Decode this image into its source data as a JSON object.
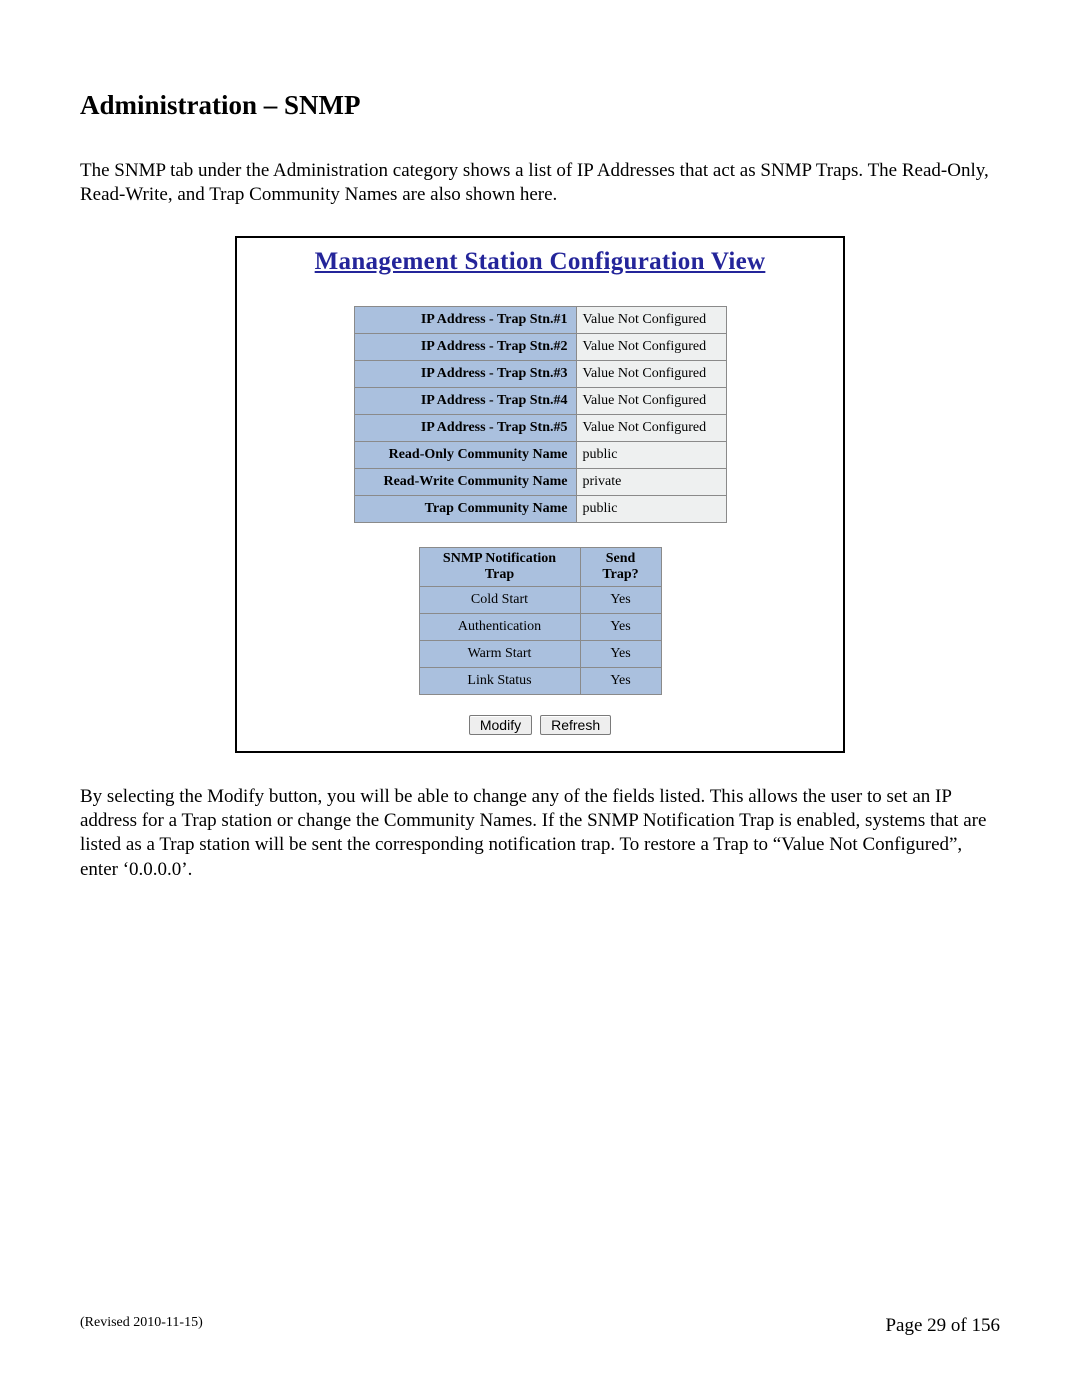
{
  "doc": {
    "heading": "Administration – SNMP",
    "intro": "The SNMP tab under the Administration category shows a list of IP Addresses that act as SNMP Traps.  The Read-Only, Read-Write, and Trap Community Names are also shown here.",
    "outro": "By selecting the Modify button, you will be able to change any of the fields listed.  This allows the user to set an IP address for a Trap station or change the Community Names.  If the SNMP Notification Trap is enabled, systems that are listed as a Trap station will be sent the corresponding notification trap.  To restore a Trap to “Value Not Configured”, enter ‘0.0.0.0’.",
    "revised": "(Revised 2010-11-15)",
    "page_label": "Page 29 of 156"
  },
  "panel": {
    "title": "Management Station Configuration View",
    "rows": [
      {
        "label": "IP Address - Trap Stn.#1",
        "value": "Value Not Configured"
      },
      {
        "label": "IP Address - Trap Stn.#2",
        "value": "Value Not Configured"
      },
      {
        "label": "IP Address - Trap Stn.#3",
        "value": "Value Not Configured"
      },
      {
        "label": "IP Address - Trap Stn.#4",
        "value": "Value Not Configured"
      },
      {
        "label": "IP Address - Trap Stn.#5",
        "value": "Value Not Configured"
      },
      {
        "label": "Read-Only Community Name",
        "value": "public"
      },
      {
        "label": "Read-Write Community Name",
        "value": "private"
      },
      {
        "label": "Trap Community Name",
        "value": "public"
      }
    ],
    "trap_header_name": "SNMP Notification Trap",
    "trap_header_send": "Send Trap?",
    "traps": [
      {
        "name": "Cold Start",
        "send": "Yes"
      },
      {
        "name": "Authentication",
        "send": "Yes"
      },
      {
        "name": "Warm Start",
        "send": "Yes"
      },
      {
        "name": "Link Status",
        "send": "Yes"
      }
    ],
    "buttons": {
      "modify": "Modify",
      "refresh": "Refresh"
    }
  },
  "style": {
    "page_bg": "#ffffff",
    "text_color": "#000000",
    "panel_title_color": "#24259a",
    "cell_header_bg": "#aac0de",
    "cell_value_bg": "#eef0f0",
    "cell_border": "#8a8a8a"
  }
}
